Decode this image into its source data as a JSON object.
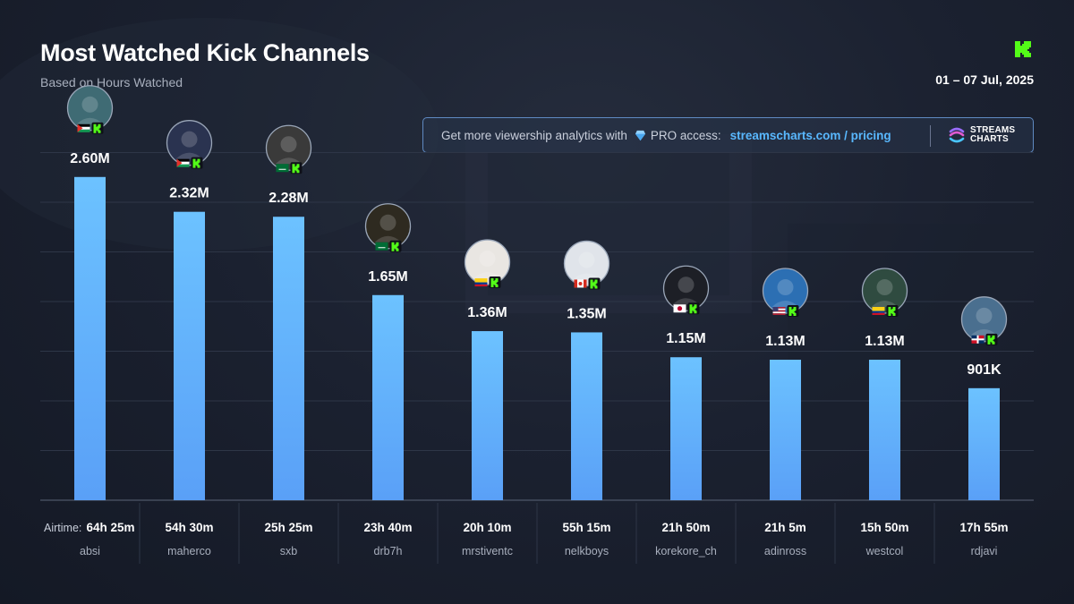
{
  "header": {
    "title": "Most Watched Kick Channels",
    "subtitle": "Based on Hours Watched",
    "date_range": "01 – 07 Jul, 2025"
  },
  "promo": {
    "text": "Get more viewership analytics with",
    "pro": "PRO access:",
    "link": "streamscharts.com / pricing",
    "brand_line1": "STREAMS",
    "brand_line2": "CHARTS"
  },
  "colors": {
    "bar_top": "#6cc2ff",
    "bar_bottom": "#5aa0f7",
    "kick_green": "#53fc18",
    "accent_link": "#59b8ff"
  },
  "chart_data": {
    "type": "bar",
    "y_unit": "hours watched",
    "ylim": [
      0,
      2800000
    ],
    "grid": true,
    "airtime_label": "Airtime:",
    "categories": [
      "absi",
      "maherco",
      "sxb",
      "drb7h",
      "mrstiventc",
      "nelkboys",
      "korekore_ch",
      "adinross",
      "westcol",
      "rdjavi"
    ],
    "values": [
      2600000,
      2320000,
      2280000,
      1650000,
      1360000,
      1350000,
      1150000,
      1130000,
      1130000,
      901000
    ],
    "value_labels": [
      "2.60M",
      "2.32M",
      "2.28M",
      "1.65M",
      "1.36M",
      "1.35M",
      "1.15M",
      "1.13M",
      "1.13M",
      "901K"
    ],
    "airtime": [
      "64h 25m",
      "54h 30m",
      "25h 25m",
      "23h 40m",
      "20h 10m",
      "55h 15m",
      "21h 50m",
      "21h 5m",
      "15h 50m",
      "17h 55m"
    ],
    "countries": [
      "Palestine",
      "Palestine",
      "Saudi Arabia",
      "Saudi Arabia",
      "Colombia",
      "Canada",
      "Japan",
      "United States",
      "Colombia",
      "Dominican Republic"
    ]
  }
}
